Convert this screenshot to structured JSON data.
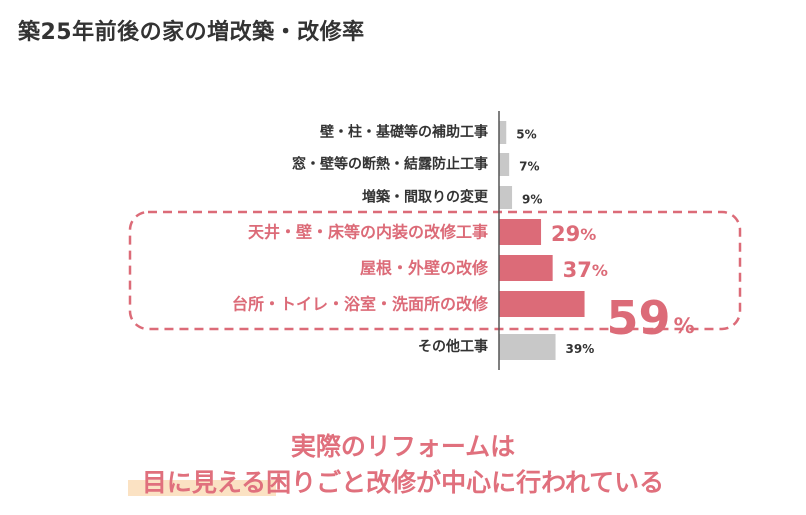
{
  "page": {
    "title": "築25年前後の家の増改築・改修率"
  },
  "chart_data": {
    "type": "bar",
    "orientation": "horizontal",
    "categories": [
      "壁・柱・基礎等の補助工事",
      "窓・壁等の断熱・結露防止工事",
      "増築・間取りの変更",
      "天井・壁・床等の内装の改修工事",
      "屋根・外壁の改修",
      "台所・トイレ・浴室・洗面所の改修",
      "その他工事"
    ],
    "values": [
      5,
      7,
      9,
      29,
      37,
      59,
      39
    ],
    "value_labels": [
      "5%",
      "7%",
      "9%",
      "29%",
      "37%",
      "59%",
      "39%"
    ],
    "highlighted": [
      false,
      false,
      false,
      true,
      true,
      true,
      false
    ],
    "title": "",
    "xlabel": "",
    "ylabel": "",
    "xlim": [
      0,
      100
    ],
    "grid": false,
    "colors": {
      "normal": "#c8c8c8",
      "highlight": "#dc6b78",
      "normal_text": "#333333",
      "highlight_text": "#dc6b78",
      "dashed_box": "#dc6b78"
    }
  },
  "message": {
    "line1": "実際のリフォームは",
    "line2": "目に見える困りごと改修が中心に行われている"
  }
}
